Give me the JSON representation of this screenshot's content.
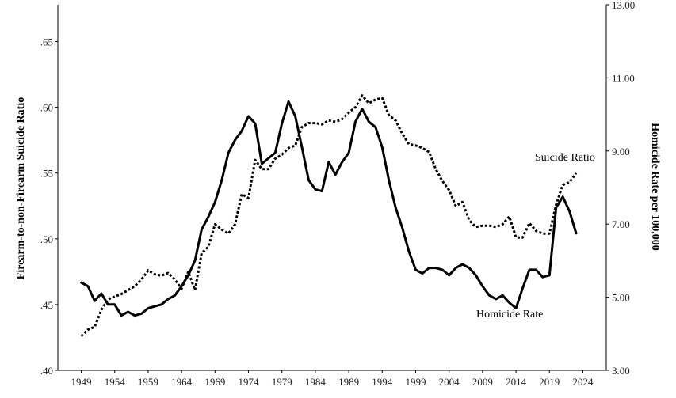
{
  "chart_data": {
    "type": "line",
    "title": "",
    "xlabel": "",
    "ylabel": "Firearm-to-non-Firearm Suicide Ratio",
    "y2label": "Homicide Rate per 100,000",
    "x_ticks": [
      "1949",
      "1954",
      "1959",
      "1964",
      "1969",
      "1974",
      "1979",
      "1984",
      "1989",
      "1994",
      "1999",
      "2004",
      "2009",
      "2014",
      "2019",
      "2024"
    ],
    "y_ticks": [
      ".40",
      ".45",
      ".50",
      ".55",
      ".60",
      ".65"
    ],
    "y2_ticks": [
      "3.00",
      "5.00",
      "7.00",
      "9.00",
      "11.00",
      "13.00"
    ],
    "xlim": [
      1945.5,
      2027.5
    ],
    "ylim": [
      0.4,
      0.678
    ],
    "y2lim": [
      3.0,
      13.0
    ],
    "grid": false,
    "legend": "none",
    "annotations": [
      {
        "text": "Suicide Ratio",
        "series": "Suicide Ratio"
      },
      {
        "text": "Homicide Rate",
        "series": "Homicide Rate"
      }
    ],
    "series": [
      {
        "name": "Suicide Ratio",
        "axis": "left",
        "style": "dotted",
        "color": "#000000",
        "x": [
          1949,
          1950,
          1951,
          1952,
          1953,
          1954,
          1955,
          1956,
          1957,
          1958,
          1959,
          1960,
          1961,
          1962,
          1963,
          1964,
          1965,
          1966,
          1967,
          1968,
          1969,
          1970,
          1971,
          1972,
          1973,
          1974,
          1975,
          1976,
          1977,
          1978,
          1979,
          1980,
          1981,
          1982,
          1983,
          1984,
          1985,
          1986,
          1987,
          1988,
          1989,
          1990,
          1991,
          1992,
          1993,
          1994,
          1995,
          1996,
          1997,
          1998,
          1999,
          2000,
          2001,
          2002,
          2003,
          2004,
          2005,
          2006,
          2007,
          2008,
          2009,
          2010,
          2011,
          2012,
          2013,
          2014,
          2015,
          2016,
          2017,
          2018,
          2019,
          2020,
          2021,
          2022,
          2023
        ],
        "values": [
          0.426,
          0.431,
          0.433,
          0.446,
          0.454,
          0.456,
          0.458,
          0.461,
          0.464,
          0.469,
          0.476,
          0.473,
          0.472,
          0.474,
          0.469,
          0.462,
          0.475,
          0.461,
          0.489,
          0.494,
          0.511,
          0.507,
          0.504,
          0.511,
          0.534,
          0.531,
          0.56,
          0.553,
          0.553,
          0.561,
          0.564,
          0.569,
          0.571,
          0.585,
          0.588,
          0.588,
          0.587,
          0.59,
          0.589,
          0.591,
          0.596,
          0.6,
          0.609,
          0.603,
          0.606,
          0.607,
          0.594,
          0.59,
          0.58,
          0.572,
          0.571,
          0.569,
          0.566,
          0.553,
          0.544,
          0.537,
          0.525,
          0.528,
          0.514,
          0.509,
          0.51,
          0.51,
          0.509,
          0.511,
          0.517,
          0.501,
          0.501,
          0.512,
          0.506,
          0.504,
          0.504,
          0.526,
          0.541,
          0.543,
          0.55
        ]
      },
      {
        "name": "Homicide Rate",
        "axis": "right",
        "style": "solid",
        "color": "#000000",
        "x": [
          1949,
          1950,
          1951,
          1952,
          1953,
          1954,
          1955,
          1956,
          1957,
          1958,
          1959,
          1960,
          1961,
          1962,
          1963,
          1964,
          1965,
          1966,
          1967,
          1968,
          1969,
          1970,
          1971,
          1972,
          1973,
          1974,
          1975,
          1976,
          1977,
          1978,
          1979,
          1980,
          1981,
          1982,
          1983,
          1984,
          1985,
          1986,
          1987,
          1988,
          1989,
          1990,
          1991,
          1992,
          1993,
          1994,
          1995,
          1996,
          1997,
          1998,
          1999,
          2000,
          2001,
          2002,
          2003,
          2004,
          2005,
          2006,
          2007,
          2008,
          2009,
          2010,
          2011,
          2012,
          2013,
          2014,
          2015,
          2016,
          2017,
          2018,
          2019,
          2020,
          2021,
          2022,
          2023
        ],
        "values": [
          5.4,
          5.3,
          4.9,
          5.1,
          4.8,
          4.8,
          4.5,
          4.6,
          4.5,
          4.55,
          4.7,
          4.75,
          4.8,
          4.95,
          5.05,
          5.3,
          5.6,
          6.0,
          6.85,
          7.2,
          7.6,
          8.2,
          8.95,
          9.3,
          9.55,
          9.95,
          9.75,
          8.65,
          8.8,
          8.95,
          9.75,
          10.35,
          9.95,
          9.1,
          8.2,
          7.95,
          7.9,
          8.7,
          8.35,
          8.7,
          8.95,
          9.8,
          10.15,
          9.8,
          9.65,
          9.1,
          8.2,
          7.45,
          6.9,
          6.25,
          5.75,
          5.65,
          5.8,
          5.8,
          5.75,
          5.6,
          5.8,
          5.9,
          5.8,
          5.6,
          5.3,
          5.05,
          4.95,
          5.05,
          4.85,
          4.7,
          5.25,
          5.75,
          5.75,
          5.55,
          5.6,
          7.45,
          7.75,
          7.35,
          6.75
        ]
      }
    ]
  }
}
